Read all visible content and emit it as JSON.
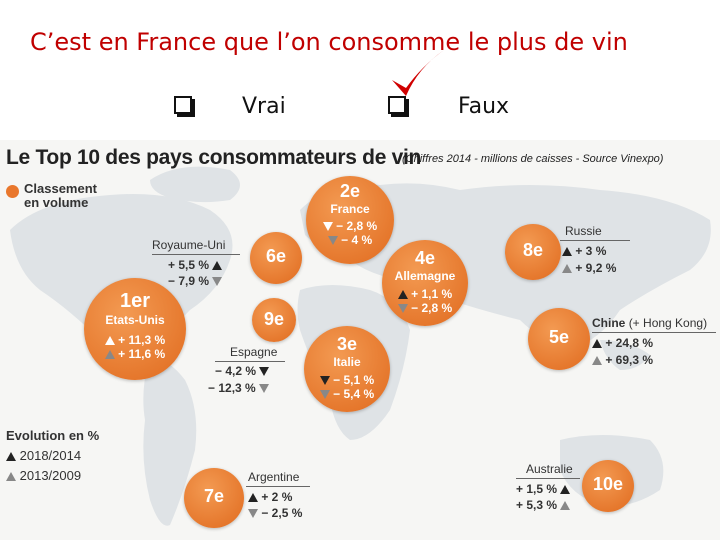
{
  "question": "C’est en France que l’on consomme le plus de vin",
  "options": [
    {
      "label": "Vrai",
      "checked": false
    },
    {
      "label": "Faux",
      "checked": true
    }
  ],
  "check_color": "#d00000",
  "infographic": {
    "title": "Le Top 10 des pays consommateurs de vin",
    "subtitle": "(Chiffres 2014 - millions de caisses - Source Vinexpo)",
    "legend_ranking": [
      "Classement",
      "en volume"
    ],
    "evolution_title": "Evolution en %",
    "evolution_periods": [
      "2018/2014",
      "2013/2009"
    ],
    "accent_color": "#e9772c",
    "countries": {
      "usa": {
        "rank": "1er",
        "name": "Etats-Unis",
        "d1": "+ 11,3 %",
        "d2": "+ 11,6 %"
      },
      "france": {
        "rank": "2e",
        "name": "France",
        "d1": "− 2,8 %",
        "d2": "− 4 %"
      },
      "italie": {
        "rank": "3e",
        "name": "Italie",
        "d1": "− 5,1 %",
        "d2": "− 5,4 %"
      },
      "allemagne": {
        "rank": "4e",
        "name": "Allemagne",
        "d1": "+ 1,1 %",
        "d2": "− 2,8 %"
      },
      "chine": {
        "rank": "5e",
        "name": "Chine",
        "name_extra": "(+ Hong Kong)",
        "d1": "+ 24,8 %",
        "d2": "+ 69,3 %"
      },
      "royaume_uni": {
        "rank": "6e",
        "name": "Royaume-Uni",
        "d1": "+ 5,5 %",
        "d2": "− 7,9 %"
      },
      "argentine": {
        "rank": "7e",
        "name": "Argentine",
        "d1": "+ 2 %",
        "d2": "− 2,5 %"
      },
      "russie": {
        "rank": "8e",
        "name": "Russie",
        "d1": "+ 3 %",
        "d2": "+ 9,2 %"
      },
      "espagne": {
        "rank": "9e",
        "name": "Espagne",
        "d1": "− 4,2 %",
        "d2": "− 12,3 %"
      },
      "australie": {
        "rank": "10e",
        "name": "Australie",
        "d1": "+ 1,5 %",
        "d2": "+ 5,3 %"
      }
    }
  }
}
